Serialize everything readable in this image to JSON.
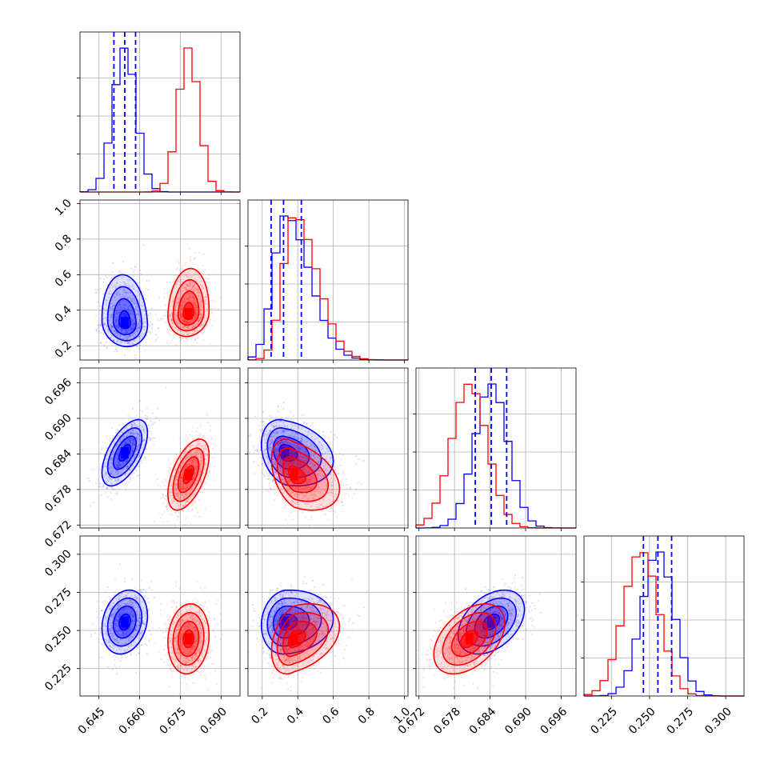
{
  "chart_data": {
    "type": "corner",
    "grid": true,
    "colors": {
      "series_a": "#0000ff",
      "series_b": "#ff0000"
    },
    "parameters": [
      {
        "ticks": [
          0.645,
          0.66,
          0.675,
          0.69
        ],
        "tick_labels": [
          "0.645",
          "0.660",
          "0.675",
          "0.690"
        ],
        "range": [
          0.638,
          0.697
        ]
      },
      {
        "ticks": [
          0.2,
          0.4,
          0.6,
          0.8,
          1.0
        ],
        "tick_labels": [
          "0.2",
          "0.4",
          "0.6",
          "0.8",
          "1.0"
        ],
        "range": [
          0.12,
          1.02
        ]
      },
      {
        "ticks": [
          0.672,
          0.678,
          0.684,
          0.69,
          0.696
        ],
        "tick_labels": [
          "0.672",
          "0.678",
          "0.684",
          "0.690",
          "0.696"
        ],
        "range": [
          0.6715,
          0.6985
        ]
      },
      {
        "ticks": [
          0.225,
          0.25,
          0.275,
          0.3
        ],
        "tick_labels": [
          "0.225",
          "0.250",
          "0.275",
          "0.300"
        ],
        "range": [
          0.207,
          0.312
        ]
      }
    ],
    "series": [
      {
        "color": "blue",
        "center": [
          0.6545,
          0.33,
          0.6842,
          0.2555
        ],
        "sigma": [
          0.0042,
          0.09,
          0.0028,
          0.0105
        ],
        "quantiles": [
          [
            0.6505,
            0.6545,
            0.6585
          ],
          [
            0.25,
            0.32,
            0.42
          ],
          [
            0.6815,
            0.6842,
            0.6868
          ],
          [
            0.246,
            0.2555,
            0.2645
          ]
        ],
        "correlations": {
          "0-1": -0.1,
          "0-2": 0.6,
          "0-3": 0.2,
          "1-2": -0.25,
          "1-3": 0.1,
          "2-3": 0.4
        }
      },
      {
        "color": "red",
        "center": [
          0.678,
          0.38,
          0.6805,
          0.2445
        ],
        "sigma": [
          0.0038,
          0.085,
          0.003,
          0.0115
        ],
        "correlations": {
          "0-1": 0.1,
          "0-2": 0.55,
          "0-3": 0.1,
          "1-2": -0.4,
          "1-3": 0.35,
          "2-3": 0.45
        }
      }
    ]
  }
}
